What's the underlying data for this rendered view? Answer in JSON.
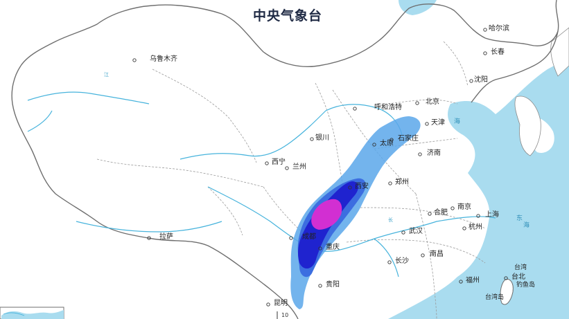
{
  "title": {
    "top_partial": "",
    "issuer": "中央气象台"
  },
  "cities": [
    {
      "name": "乌鲁木齐",
      "marker": true
    },
    {
      "name": "哈尔滨",
      "marker": true
    },
    {
      "name": "长春",
      "marker": true
    },
    {
      "name": "沈阳",
      "marker": true
    },
    {
      "name": "北京",
      "marker": true
    },
    {
      "name": "天津",
      "marker": true
    },
    {
      "name": "呼和浩特",
      "marker": true
    },
    {
      "name": "石家庄",
      "marker": true
    },
    {
      "name": "太原",
      "marker": true
    },
    {
      "name": "银川",
      "marker": true
    },
    {
      "name": "济南",
      "marker": true
    },
    {
      "name": "西宁",
      "marker": true
    },
    {
      "name": "兰州",
      "marker": true
    },
    {
      "name": "西安",
      "marker": true
    },
    {
      "name": "郑州",
      "marker": true
    },
    {
      "name": "合肥",
      "marker": true
    },
    {
      "name": "南京",
      "marker": true
    },
    {
      "name": "上海",
      "marker": true
    },
    {
      "name": "杭州",
      "marker": true
    },
    {
      "name": "武汉",
      "marker": true
    },
    {
      "name": "成都",
      "marker": true
    },
    {
      "name": "重庆",
      "marker": true
    },
    {
      "name": "长沙",
      "marker": true
    },
    {
      "name": "南昌",
      "marker": true
    },
    {
      "name": "福州",
      "marker": true
    },
    {
      "name": "台北",
      "marker": true
    },
    {
      "name": "贵阳",
      "marker": true
    },
    {
      "name": "昆明",
      "marker": true
    },
    {
      "name": "拉萨",
      "marker": true
    }
  ],
  "water_labels": [
    "长",
    "海",
    "东",
    "海",
    "江"
  ],
  "small_labels": [
    "台湾",
    "台湾岛",
    "钓鱼岛"
  ],
  "tick_label": "10",
  "colors": {
    "land": "#ffffff",
    "sea": "#a9dcef",
    "border": "#6e6e6e",
    "river": "#46b3dc",
    "rain_light": "#5aa7ea",
    "rain_medium": "#3c6ee0",
    "rain_heavy": "#1f23cf",
    "rain_extreme": "#d22fd2"
  }
}
